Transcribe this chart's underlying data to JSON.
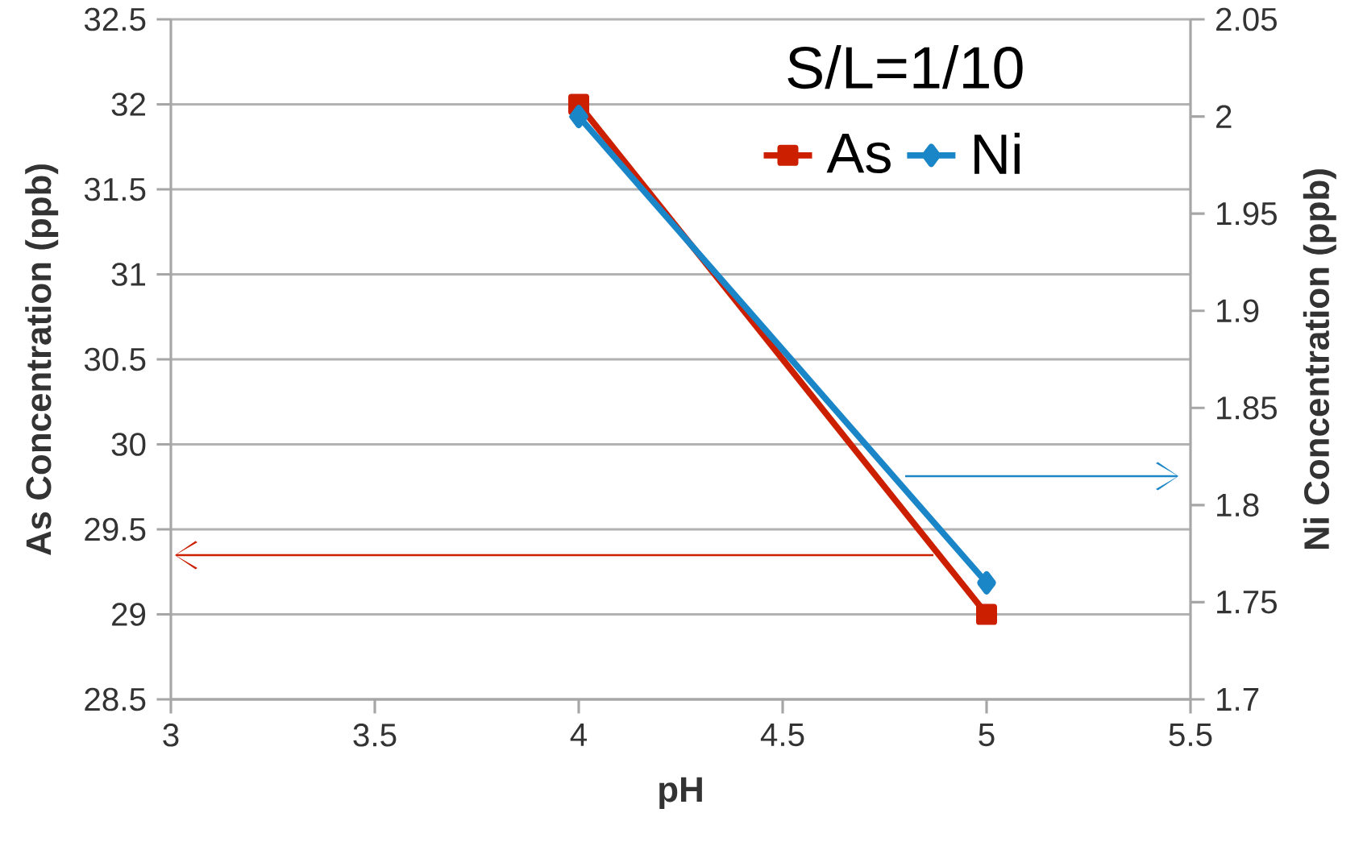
{
  "chart_data": {
    "type": "line",
    "legend_title": "S/L=1/10",
    "xlabel": "pH",
    "ylabel": "As Concentration (ppb)",
    "y2label": "Ni Concentration (ppb)",
    "series": [
      {
        "name": "As",
        "color": "#cc1f00",
        "marker": "square",
        "values": [
          32,
          29
        ]
      },
      {
        "name": "Ni",
        "color": "#1a86c8",
        "marker": "diamond",
        "axis": "y2",
        "values": [
          2.0,
          1.76
        ]
      }
    ],
    "x": [
      4,
      5
    ],
    "xlim": [
      3,
      5.5
    ],
    "xticks": [
      3,
      3.5,
      4,
      4.5,
      5,
      5.5
    ],
    "ylim": [
      28.5,
      32.5
    ],
    "yticks": [
      28.5,
      29,
      29.5,
      30,
      30.5,
      31,
      31.5,
      32,
      32.5
    ],
    "y2lim": [
      1.7,
      2.05
    ],
    "y2ticks": [
      1.7,
      1.75,
      1.8,
      1.85,
      1.9,
      1.95,
      2,
      2.05
    ],
    "grid": "y",
    "legend": "top right"
  }
}
